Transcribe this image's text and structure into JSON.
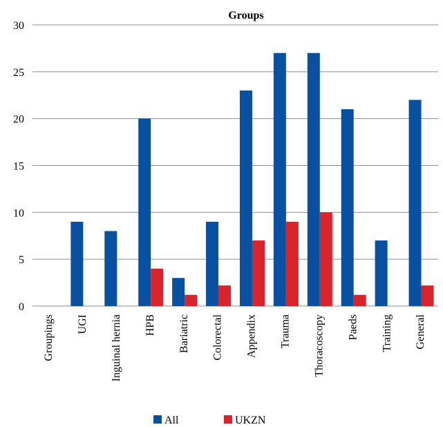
{
  "chart_data": {
    "type": "bar",
    "title": "Groups",
    "categories": [
      "Groupings",
      "UGI",
      "Inguinal hernia",
      "HPB",
      "Bariatric",
      "Colorectal",
      "Appendix",
      "Trauma",
      "Thoracoscopy",
      "Paeds",
      "Training",
      "General"
    ],
    "series": [
      {
        "name": "All",
        "color": "#0a50a1",
        "values": [
          0,
          9,
          8,
          20,
          3,
          9,
          23,
          27,
          27,
          21,
          7,
          22
        ]
      },
      {
        "name": "UKZN",
        "color": "#d9232d",
        "values": [
          0,
          0,
          0,
          4,
          1.2,
          2.2,
          7,
          9,
          10,
          1.2,
          0,
          2.2
        ]
      }
    ],
    "ylim": [
      0,
      30
    ],
    "yticks": [
      0,
      5,
      10,
      15,
      20,
      25,
      30
    ],
    "xlabel": "",
    "ylabel": "",
    "grid": true,
    "legend": "bottom"
  }
}
